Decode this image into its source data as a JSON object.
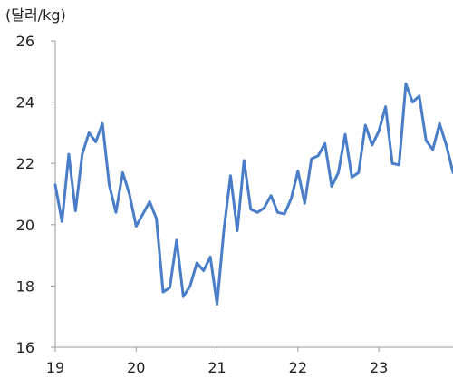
{
  "chart_data": {
    "type": "line",
    "unit_label": "(달러/kg)",
    "title": "",
    "xlabel": "",
    "ylabel": "",
    "ylim": [
      16,
      26
    ],
    "yticks": [
      16,
      18,
      20,
      22,
      24,
      26
    ],
    "xlim": [
      19,
      23.917
    ],
    "xticks": [
      19,
      20,
      21,
      22,
      23
    ],
    "grid": false,
    "legend": "none",
    "series": [
      {
        "color": "#4a7dc8",
        "values": [
          21.3,
          20.1,
          22.3,
          20.45,
          22.3,
          23.0,
          22.7,
          23.3,
          21.3,
          20.4,
          21.7,
          21.0,
          19.95,
          20.35,
          20.75,
          20.2,
          17.8,
          17.95,
          19.5,
          17.65,
          18.0,
          18.75,
          18.5,
          18.95,
          17.4,
          19.8,
          21.6,
          19.8,
          22.1,
          20.5,
          20.4,
          20.55,
          20.95,
          20.4,
          20.35,
          20.85,
          21.75,
          20.7,
          22.15,
          22.25,
          22.65,
          21.25,
          21.7,
          22.95,
          21.55,
          21.7,
          23.25,
          22.6,
          23.05,
          23.85,
          22.0,
          21.95,
          24.6,
          24.0,
          24.2,
          22.75,
          22.45,
          23.3,
          22.6,
          21.7
        ]
      }
    ]
  }
}
